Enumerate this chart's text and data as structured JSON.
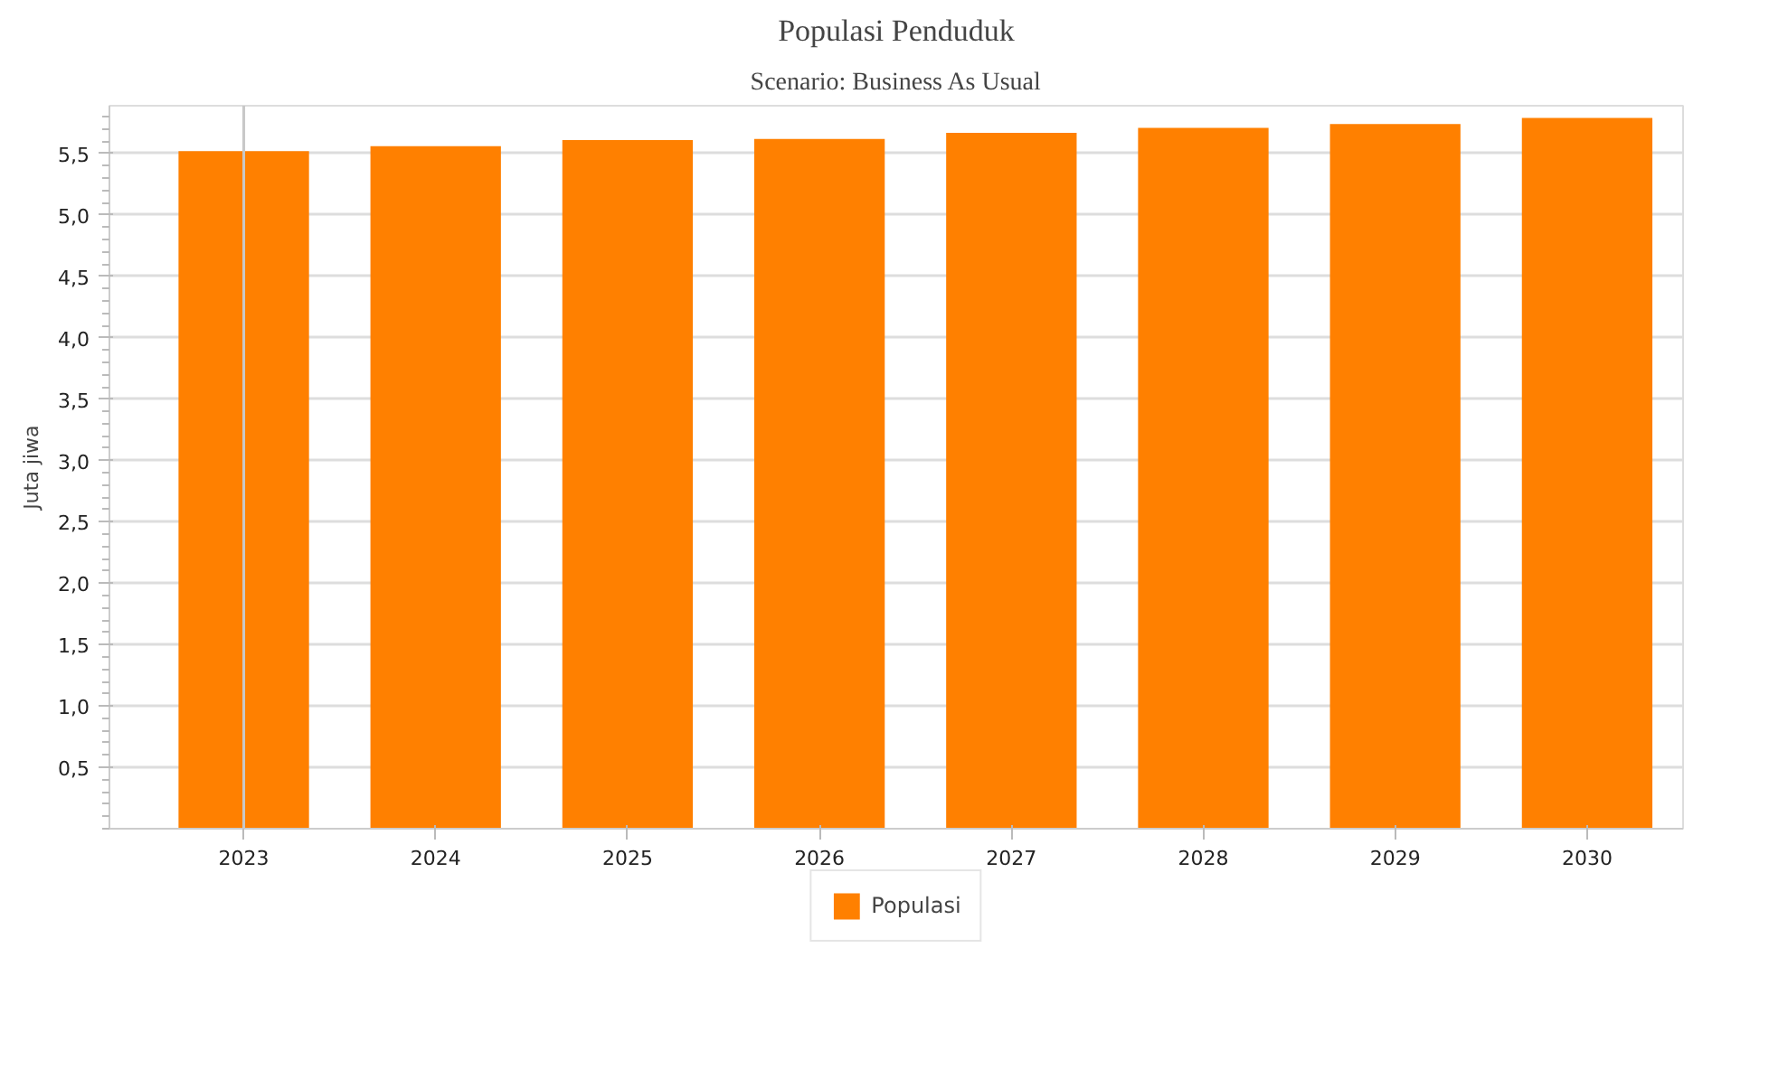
{
  "chart_data": {
    "type": "bar",
    "title": "Populasi Penduduk",
    "subtitle": "Scenario: Business As Usual",
    "ylabel": "Juta jiwa",
    "categories": [
      "2023",
      "2024",
      "2025",
      "2026",
      "2027",
      "2028",
      "2029",
      "2030"
    ],
    "series": [
      {
        "name": "Populasi",
        "color": "#ff8000",
        "values": [
          5.52,
          5.56,
          5.61,
          5.62,
          5.67,
          5.71,
          5.74,
          5.79
        ]
      }
    ],
    "ylim": [
      0,
      5.89
    ],
    "yticks": [
      {
        "value": 0.5,
        "label": "0,5"
      },
      {
        "value": 1,
        "label": "1,0"
      },
      {
        "value": 1.5,
        "label": "1,5"
      },
      {
        "value": 2,
        "label": "2,0"
      },
      {
        "value": 2.5,
        "label": "2,5"
      },
      {
        "value": 3,
        "label": "3,0"
      },
      {
        "value": 3.5,
        "label": "3,5"
      },
      {
        "value": 4,
        "label": "4,0"
      },
      {
        "value": 4.5,
        "label": "4,5"
      },
      {
        "value": 5,
        "label": "5,0"
      },
      {
        "value": 5.5,
        "label": "5,5"
      }
    ],
    "ref_lines": [
      {
        "axis": "x",
        "value": "2023",
        "color": "#c8c8c8"
      }
    ],
    "grid": "y",
    "legend": "bottom"
  }
}
